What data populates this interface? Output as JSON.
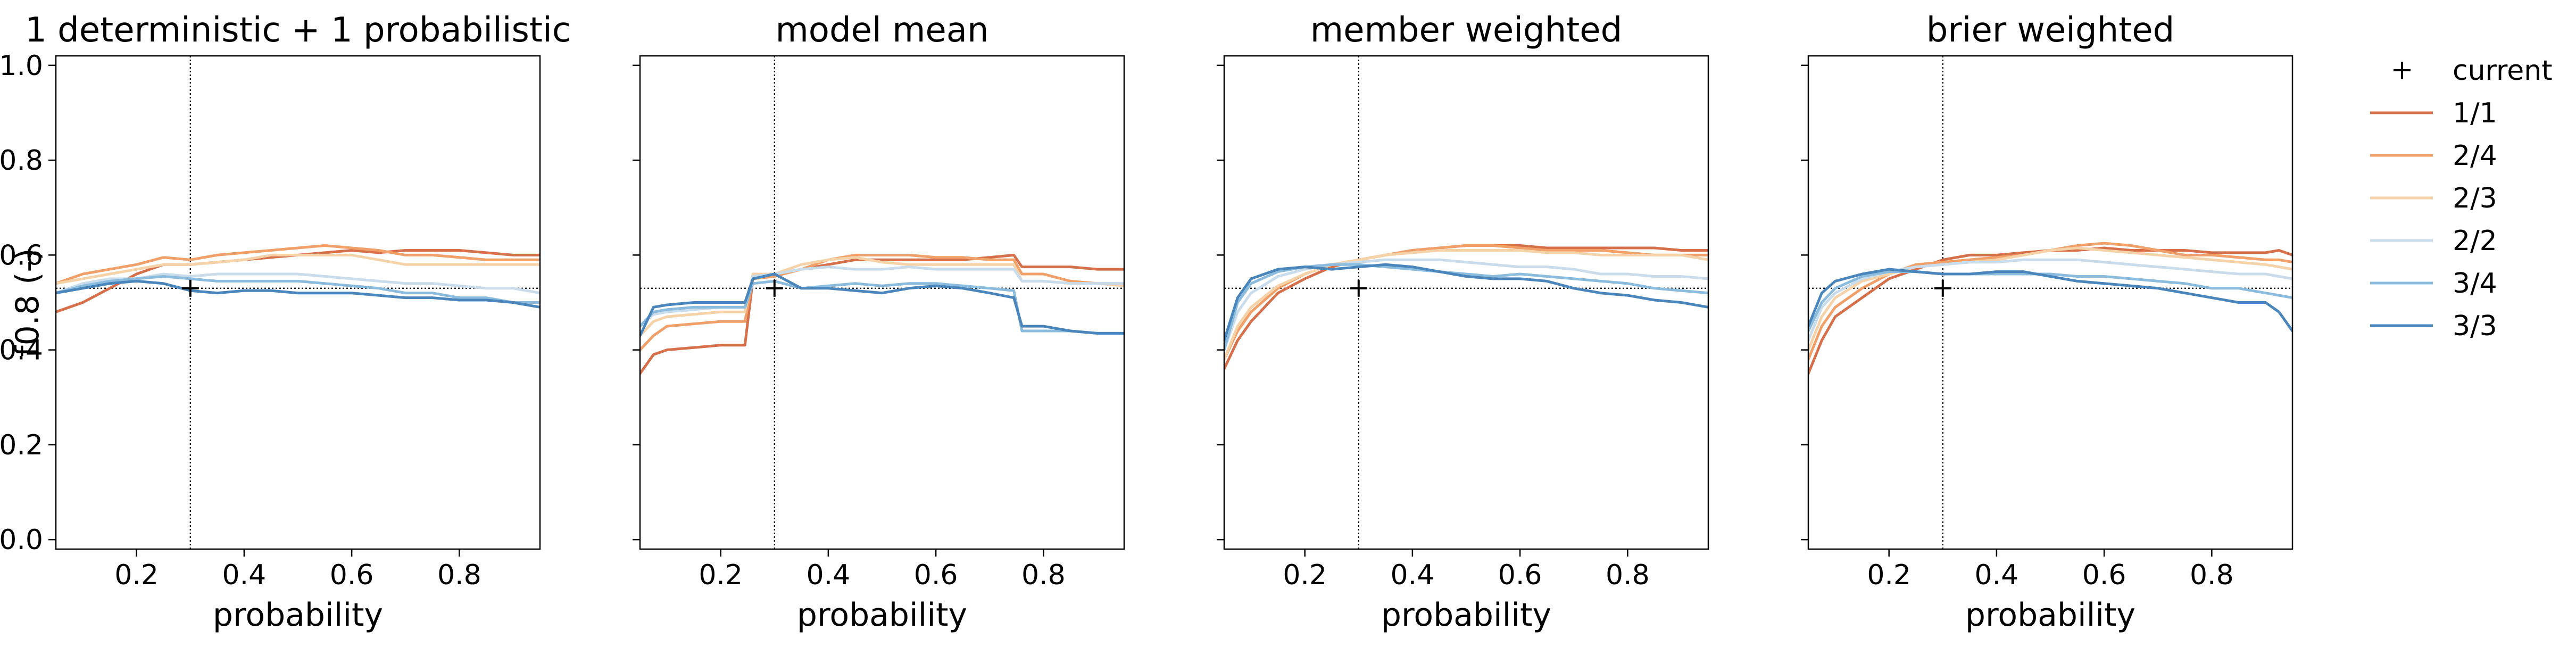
{
  "chart_data": {
    "type": "line",
    "ylabel": "f0.8 (-)",
    "xlabel": "probability",
    "xlim": [
      0.05,
      0.95
    ],
    "ylim": [
      -0.02,
      1.02
    ],
    "xticks": [
      0.2,
      0.4,
      0.6,
      0.8
    ],
    "yticks": [
      0.0,
      0.2,
      0.4,
      0.6,
      0.8,
      1.0
    ],
    "grid": false,
    "sharey": true,
    "legend_position": "right",
    "reference_lines": {
      "vertical_x": 0.3,
      "horizontal_y": 0.53
    },
    "current_marker": {
      "label": "current",
      "x": 0.3,
      "y": 0.53
    },
    "series_styles": [
      {
        "name": "1/1",
        "color": "#d6704b"
      },
      {
        "name": "2/4",
        "color": "#f0a068"
      },
      {
        "name": "2/3",
        "color": "#f5d2a8"
      },
      {
        "name": "2/2",
        "color": "#c9dcec"
      },
      {
        "name": "3/4",
        "color": "#8bbcdd"
      },
      {
        "name": "3/3",
        "color": "#4a86bb"
      }
    ],
    "panels": [
      {
        "title": "1 deterministic + 1 probabilistic",
        "x": [
          0.05,
          0.1,
          0.15,
          0.2,
          0.25,
          0.3,
          0.35,
          0.4,
          0.45,
          0.5,
          0.55,
          0.6,
          0.65,
          0.7,
          0.75,
          0.8,
          0.85,
          0.9,
          0.95
        ],
        "series": [
          {
            "name": "1/1",
            "values": [
              0.48,
              0.5,
              0.53,
              0.56,
              0.58,
              0.58,
              0.585,
              0.59,
              0.595,
              0.6,
              0.605,
              0.61,
              0.605,
              0.61,
              0.61,
              0.61,
              0.605,
              0.6,
              0.6
            ]
          },
          {
            "name": "2/4",
            "values": [
              0.54,
              0.56,
              0.57,
              0.58,
              0.595,
              0.59,
              0.6,
              0.605,
              0.61,
              0.615,
              0.62,
              0.615,
              0.61,
              0.6,
              0.6,
              0.595,
              0.59,
              0.59,
              0.59
            ]
          },
          {
            "name": "2/3",
            "values": [
              0.54,
              0.55,
              0.56,
              0.57,
              0.58,
              0.58,
              0.585,
              0.59,
              0.6,
              0.6,
              0.6,
              0.6,
              0.59,
              0.58,
              0.58,
              0.58,
              0.58,
              0.58,
              0.58
            ]
          },
          {
            "name": "2/2",
            "values": [
              0.52,
              0.54,
              0.55,
              0.55,
              0.56,
              0.555,
              0.56,
              0.56,
              0.56,
              0.56,
              0.555,
              0.55,
              0.545,
              0.54,
              0.54,
              0.535,
              0.53,
              0.53,
              0.52
            ]
          },
          {
            "name": "3/4",
            "values": [
              0.52,
              0.535,
              0.545,
              0.55,
              0.555,
              0.55,
              0.545,
              0.545,
              0.545,
              0.545,
              0.54,
              0.535,
              0.53,
              0.52,
              0.52,
              0.51,
              0.51,
              0.5,
              0.5
            ]
          },
          {
            "name": "3/3",
            "values": [
              0.52,
              0.53,
              0.54,
              0.545,
              0.54,
              0.525,
              0.52,
              0.525,
              0.525,
              0.52,
              0.52,
              0.52,
              0.515,
              0.51,
              0.51,
              0.505,
              0.505,
              0.5,
              0.49
            ]
          }
        ]
      },
      {
        "title": "model mean",
        "x": [
          0.05,
          0.075,
          0.1,
          0.15,
          0.2,
          0.245,
          0.26,
          0.3,
          0.35,
          0.4,
          0.45,
          0.5,
          0.55,
          0.6,
          0.65,
          0.7,
          0.745,
          0.76,
          0.8,
          0.85,
          0.9,
          0.95
        ],
        "series": [
          {
            "name": "1/1",
            "values": [
              0.35,
              0.39,
              0.4,
              0.405,
              0.41,
              0.41,
              0.55,
              0.56,
              0.57,
              0.58,
              0.59,
              0.59,
              0.59,
              0.59,
              0.59,
              0.595,
              0.6,
              0.575,
              0.575,
              0.575,
              0.57,
              0.57
            ]
          },
          {
            "name": "2/4",
            "values": [
              0.4,
              0.43,
              0.45,
              0.455,
              0.46,
              0.46,
              0.55,
              0.555,
              0.57,
              0.59,
              0.6,
              0.6,
              0.6,
              0.595,
              0.595,
              0.59,
              0.59,
              0.56,
              0.56,
              0.545,
              0.54,
              0.54
            ]
          },
          {
            "name": "2/3",
            "values": [
              0.43,
              0.46,
              0.47,
              0.475,
              0.48,
              0.48,
              0.56,
              0.56,
              0.58,
              0.59,
              0.595,
              0.585,
              0.58,
              0.58,
              0.58,
              0.58,
              0.58,
              0.545,
              0.545,
              0.54,
              0.54,
              0.535
            ]
          },
          {
            "name": "2/2",
            "values": [
              0.45,
              0.475,
              0.48,
              0.485,
              0.49,
              0.49,
              0.555,
              0.56,
              0.57,
              0.575,
              0.57,
              0.57,
              0.575,
              0.57,
              0.57,
              0.57,
              0.57,
              0.545,
              0.545,
              0.54,
              0.54,
              0.54
            ]
          },
          {
            "name": "3/4",
            "values": [
              0.45,
              0.48,
              0.485,
              0.49,
              0.49,
              0.49,
              0.54,
              0.545,
              0.53,
              0.535,
              0.54,
              0.535,
              0.54,
              0.54,
              0.535,
              0.53,
              0.525,
              0.44,
              0.44,
              0.44,
              0.435,
              0.435
            ]
          },
          {
            "name": "3/3",
            "values": [
              0.43,
              0.49,
              0.495,
              0.5,
              0.5,
              0.5,
              0.55,
              0.56,
              0.53,
              0.53,
              0.525,
              0.52,
              0.53,
              0.535,
              0.53,
              0.52,
              0.51,
              0.45,
              0.45,
              0.44,
              0.435,
              0.435
            ]
          }
        ]
      },
      {
        "title": "member weighted",
        "x": [
          0.05,
          0.075,
          0.1,
          0.15,
          0.2,
          0.25,
          0.3,
          0.35,
          0.4,
          0.45,
          0.5,
          0.55,
          0.6,
          0.65,
          0.7,
          0.75,
          0.8,
          0.85,
          0.9,
          0.95
        ],
        "series": [
          {
            "name": "1/1",
            "values": [
              0.36,
              0.42,
              0.46,
              0.52,
              0.55,
              0.575,
              0.59,
              0.6,
              0.61,
              0.615,
              0.62,
              0.62,
              0.62,
              0.615,
              0.615,
              0.615,
              0.615,
              0.615,
              0.61,
              0.61
            ]
          },
          {
            "name": "2/4",
            "values": [
              0.38,
              0.44,
              0.48,
              0.53,
              0.56,
              0.58,
              0.59,
              0.6,
              0.61,
              0.615,
              0.62,
              0.62,
              0.615,
              0.61,
              0.61,
              0.61,
              0.605,
              0.6,
              0.6,
              0.6
            ]
          },
          {
            "name": "2/3",
            "values": [
              0.38,
              0.45,
              0.49,
              0.535,
              0.56,
              0.58,
              0.59,
              0.6,
              0.605,
              0.61,
              0.61,
              0.61,
              0.61,
              0.605,
              0.605,
              0.6,
              0.6,
              0.6,
              0.6,
              0.59
            ]
          },
          {
            "name": "2/2",
            "values": [
              0.4,
              0.48,
              0.52,
              0.555,
              0.57,
              0.58,
              0.585,
              0.59,
              0.59,
              0.59,
              0.585,
              0.58,
              0.575,
              0.575,
              0.57,
              0.56,
              0.56,
              0.555,
              0.555,
              0.55
            ]
          },
          {
            "name": "3/4",
            "values": [
              0.4,
              0.5,
              0.54,
              0.565,
              0.575,
              0.58,
              0.58,
              0.575,
              0.57,
              0.565,
              0.56,
              0.555,
              0.56,
              0.555,
              0.55,
              0.545,
              0.54,
              0.53,
              0.525,
              0.52
            ]
          },
          {
            "name": "3/3",
            "values": [
              0.42,
              0.51,
              0.55,
              0.57,
              0.575,
              0.57,
              0.575,
              0.58,
              0.575,
              0.565,
              0.555,
              0.55,
              0.55,
              0.545,
              0.53,
              0.52,
              0.515,
              0.505,
              0.5,
              0.49
            ]
          }
        ]
      },
      {
        "title": "brier weighted",
        "x": [
          0.05,
          0.075,
          0.1,
          0.15,
          0.2,
          0.25,
          0.3,
          0.35,
          0.4,
          0.45,
          0.5,
          0.55,
          0.6,
          0.65,
          0.7,
          0.75,
          0.8,
          0.85,
          0.9,
          0.925,
          0.95
        ],
        "series": [
          {
            "name": "1/1",
            "values": [
              0.35,
              0.42,
              0.47,
              0.51,
              0.55,
              0.57,
              0.59,
              0.6,
              0.6,
              0.605,
              0.61,
              0.61,
              0.615,
              0.61,
              0.61,
              0.61,
              0.605,
              0.605,
              0.605,
              0.61,
              0.6
            ]
          },
          {
            "name": "2/4",
            "values": [
              0.38,
              0.45,
              0.49,
              0.53,
              0.56,
              0.58,
              0.585,
              0.59,
              0.595,
              0.6,
              0.61,
              0.62,
              0.625,
              0.62,
              0.61,
              0.6,
              0.6,
              0.595,
              0.59,
              0.59,
              0.585
            ]
          },
          {
            "name": "2/3",
            "values": [
              0.4,
              0.47,
              0.51,
              0.545,
              0.56,
              0.575,
              0.58,
              0.585,
              0.59,
              0.6,
              0.61,
              0.615,
              0.61,
              0.605,
              0.6,
              0.595,
              0.59,
              0.585,
              0.58,
              0.575,
              0.57
            ]
          },
          {
            "name": "2/2",
            "values": [
              0.42,
              0.49,
              0.52,
              0.55,
              0.565,
              0.575,
              0.58,
              0.585,
              0.585,
              0.59,
              0.59,
              0.59,
              0.585,
              0.58,
              0.575,
              0.57,
              0.565,
              0.56,
              0.56,
              0.555,
              0.55
            ]
          },
          {
            "name": "3/4",
            "values": [
              0.44,
              0.5,
              0.53,
              0.555,
              0.565,
              0.565,
              0.56,
              0.56,
              0.56,
              0.56,
              0.56,
              0.555,
              0.555,
              0.55,
              0.545,
              0.54,
              0.53,
              0.53,
              0.52,
              0.515,
              0.51
            ]
          },
          {
            "name": "3/3",
            "values": [
              0.45,
              0.52,
              0.545,
              0.56,
              0.57,
              0.565,
              0.56,
              0.56,
              0.565,
              0.565,
              0.555,
              0.545,
              0.54,
              0.535,
              0.53,
              0.52,
              0.51,
              0.5,
              0.5,
              0.48,
              0.44
            ]
          }
        ]
      }
    ]
  }
}
